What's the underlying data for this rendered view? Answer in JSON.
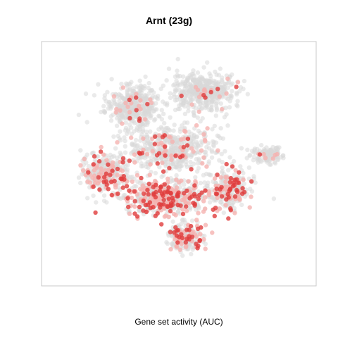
{
  "chart_data": {
    "type": "scatter",
    "title": "Arnt (23g)",
    "xlabel": "Gene set activity (AUC)",
    "ylabel": "",
    "grid": false,
    "legend": "none",
    "colors": {
      "low": "#d9d9d9",
      "mid": "#f5b3b0",
      "high": "#e03c3c",
      "frame": "#c8c8c8"
    },
    "point_opacity": 0.55,
    "clusters": [
      {
        "name": "top-left",
        "center": [
          -0.35,
          0.48
        ],
        "spread": [
          0.18,
          0.16
        ],
        "n": 420,
        "activity": 0.05
      },
      {
        "name": "top-right",
        "center": [
          0.18,
          0.6
        ],
        "spread": [
          0.22,
          0.14
        ],
        "n": 480,
        "activity": 0.04
      },
      {
        "name": "middle",
        "center": [
          -0.05,
          0.12
        ],
        "spread": [
          0.3,
          0.18
        ],
        "n": 520,
        "activity": 0.12
      },
      {
        "name": "left-lower",
        "center": [
          -0.55,
          -0.08
        ],
        "spread": [
          0.16,
          0.16
        ],
        "n": 300,
        "activity": 0.3
      },
      {
        "name": "center-lower",
        "center": [
          -0.1,
          -0.28
        ],
        "spread": [
          0.28,
          0.14
        ],
        "n": 520,
        "activity": 0.45
      },
      {
        "name": "bottom",
        "center": [
          0.05,
          -0.62
        ],
        "spread": [
          0.12,
          0.1
        ],
        "n": 200,
        "activity": 0.4
      },
      {
        "name": "right-mid",
        "center": [
          0.38,
          -0.22
        ],
        "spread": [
          0.14,
          0.15
        ],
        "n": 280,
        "activity": 0.3
      },
      {
        "name": "far-right",
        "center": [
          0.65,
          0.07
        ],
        "spread": [
          0.12,
          0.06
        ],
        "n": 120,
        "activity": 0.06
      }
    ]
  }
}
